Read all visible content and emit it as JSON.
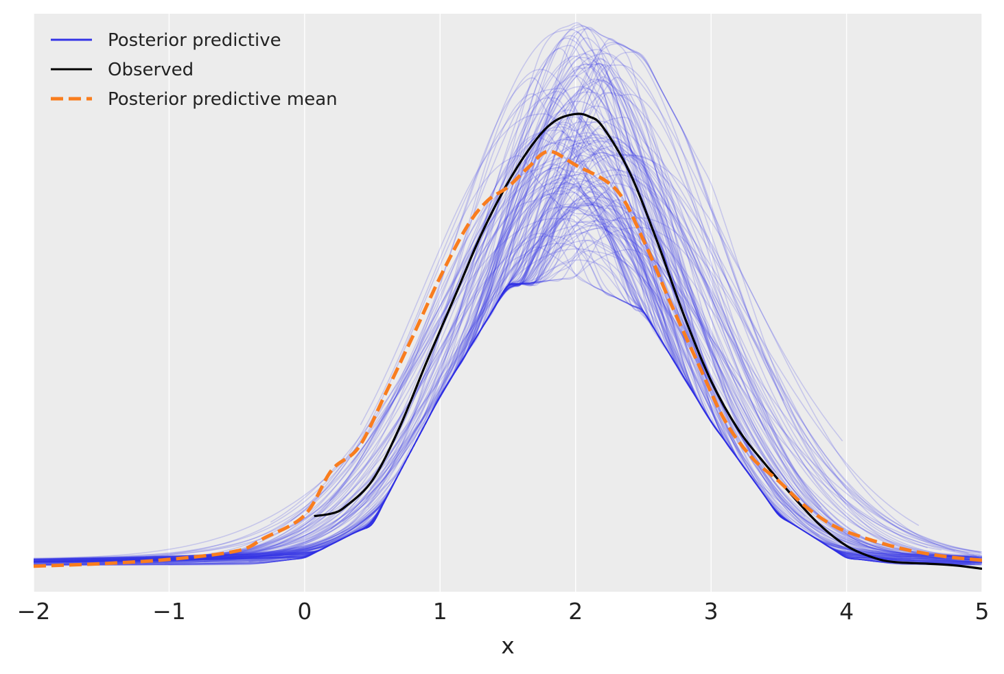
{
  "colors": {
    "background": "#ececec",
    "grid": "#ffffff",
    "posterior_predictive": "#3333e6",
    "observed": "#000000",
    "posterior_predictive_mean": "#f97d1e"
  },
  "chart_data": {
    "type": "line",
    "title": "",
    "xlabel": "x",
    "ylabel": "",
    "xlim": [
      -2,
      5
    ],
    "ylim": [
      -0.03,
      0.65
    ],
    "xticks": [
      -2,
      -1,
      0,
      1,
      2,
      3,
      4,
      5
    ],
    "xtick_labels": [
      "−2",
      "−1",
      "0",
      "1",
      "2",
      "3",
      "4",
      "5"
    ],
    "grid": "vertical lines at x ticks",
    "legend_position": "top-left",
    "legend": [
      {
        "label": "Posterior predictive",
        "style": "solid",
        "color": "#3333e6"
      },
      {
        "label": "Observed",
        "style": "solid",
        "color": "#000000"
      },
      {
        "label": "Posterior predictive mean",
        "style": "dashed",
        "color": "#f97d1e"
      }
    ],
    "observed": {
      "x": [
        0.07,
        0.2,
        0.3,
        0.5,
        0.7,
        0.9,
        1.1,
        1.3,
        1.5,
        1.7,
        1.85,
        2.0,
        2.1,
        2.2,
        2.4,
        2.6,
        2.8,
        3.0,
        3.2,
        3.4,
        3.6,
        3.8,
        4.0,
        4.2,
        4.35,
        4.6,
        4.8,
        5.0
      ],
      "y": [
        0.059,
        0.062,
        0.07,
        0.101,
        0.163,
        0.24,
        0.314,
        0.389,
        0.451,
        0.5,
        0.524,
        0.532,
        0.529,
        0.517,
        0.463,
        0.383,
        0.295,
        0.218,
        0.161,
        0.12,
        0.083,
        0.049,
        0.024,
        0.01,
        0.005,
        0.003,
        0.001,
        -0.003
      ]
    },
    "posterior_predictive_mean": {
      "x": [
        -2.0,
        -1.5,
        -1.0,
        -0.5,
        -0.3,
        0.0,
        0.2,
        0.4,
        0.6,
        0.8,
        1.0,
        1.2,
        1.35,
        1.5,
        1.65,
        1.8,
        2.0,
        2.3,
        2.5,
        2.7,
        2.9,
        3.1,
        3.3,
        3.5,
        3.7,
        3.9,
        4.1,
        4.4,
        4.7,
        5.0
      ],
      "y": [
        0.0,
        0.003,
        0.008,
        0.018,
        0.033,
        0.06,
        0.113,
        0.14,
        0.204,
        0.271,
        0.34,
        0.4,
        0.43,
        0.446,
        0.469,
        0.488,
        0.472,
        0.443,
        0.384,
        0.31,
        0.24,
        0.172,
        0.128,
        0.1,
        0.07,
        0.048,
        0.035,
        0.021,
        0.012,
        0.007
      ]
    },
    "posterior_predictive": {
      "count": 150,
      "envelope": {
        "x": [
          -2.0,
          -1.5,
          -1.0,
          -0.5,
          0.0,
          0.5,
          1.0,
          1.5,
          2.0,
          2.5,
          3.0,
          3.5,
          4.0,
          4.5,
          5.0
        ],
        "y_min": [
          -0.002,
          -0.002,
          -0.001,
          0.0,
          0.01,
          0.05,
          0.2,
          0.33,
          0.34,
          0.3,
          0.17,
          0.06,
          0.01,
          0.0,
          -0.002
        ],
        "y_max": [
          0.05,
          0.04,
          0.05,
          0.1,
          0.15,
          0.28,
          0.48,
          0.6,
          0.64,
          0.6,
          0.45,
          0.28,
          0.14,
          0.07,
          0.05
        ]
      }
    }
  }
}
